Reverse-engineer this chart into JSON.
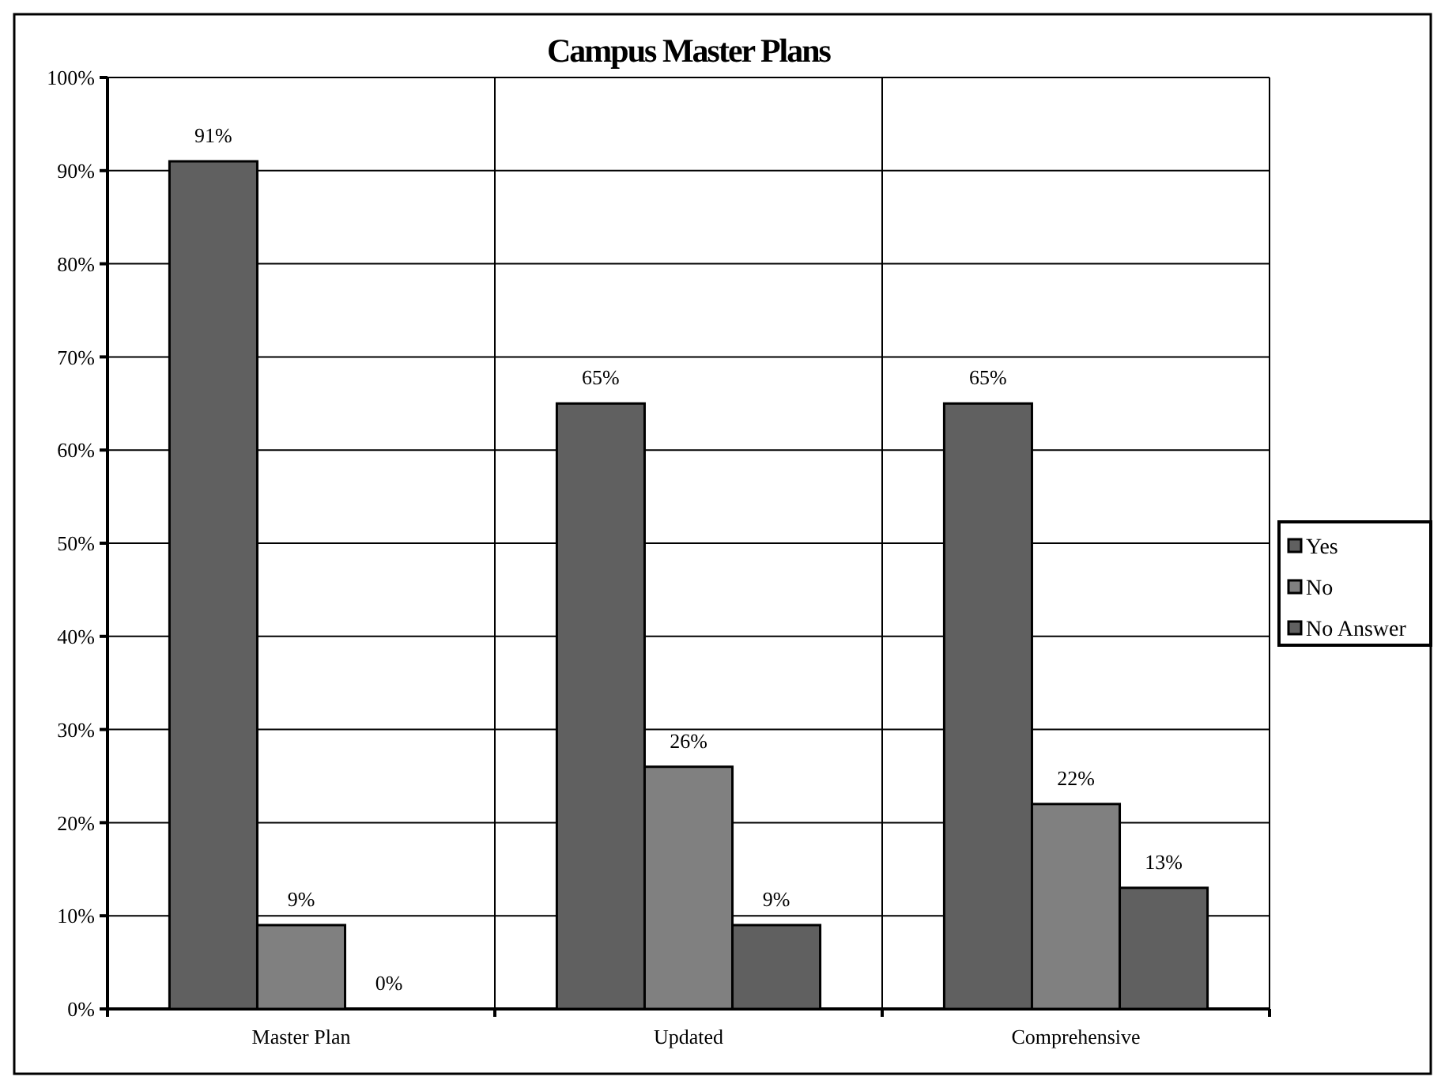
{
  "chart_data": {
    "type": "bar",
    "title": "Campus Master Plans",
    "categories": [
      "Master Plan",
      "Updated",
      "Comprehensive"
    ],
    "series": [
      {
        "name": "Yes",
        "color": "#606060",
        "values": [
          91,
          65,
          65
        ]
      },
      {
        "name": "No",
        "color": "#808080",
        "values": [
          9,
          26,
          22
        ]
      },
      {
        "name": "No Answer",
        "color": "#606060",
        "values": [
          0,
          9,
          13
        ]
      }
    ],
    "ylim": [
      0,
      100
    ],
    "yticks": [
      {
        "value": 0,
        "label": "0%"
      },
      {
        "value": 10,
        "label": "10%"
      },
      {
        "value": 20,
        "label": "20%"
      },
      {
        "value": 30,
        "label": "30%"
      },
      {
        "value": 40,
        "label": "40%"
      },
      {
        "value": 50,
        "label": "50%"
      },
      {
        "value": 60,
        "label": "60%"
      },
      {
        "value": 70,
        "label": "70%"
      },
      {
        "value": 80,
        "label": "80%"
      },
      {
        "value": 90,
        "label": "90%"
      },
      {
        "value": 100,
        "label": "100%"
      }
    ],
    "value_labels": [
      [
        "91%",
        "65%",
        "65%"
      ],
      [
        "9%",
        "26%",
        "22%"
      ],
      [
        "0%",
        "9%",
        "13%"
      ]
    ],
    "grid": true,
    "legend": "right"
  }
}
